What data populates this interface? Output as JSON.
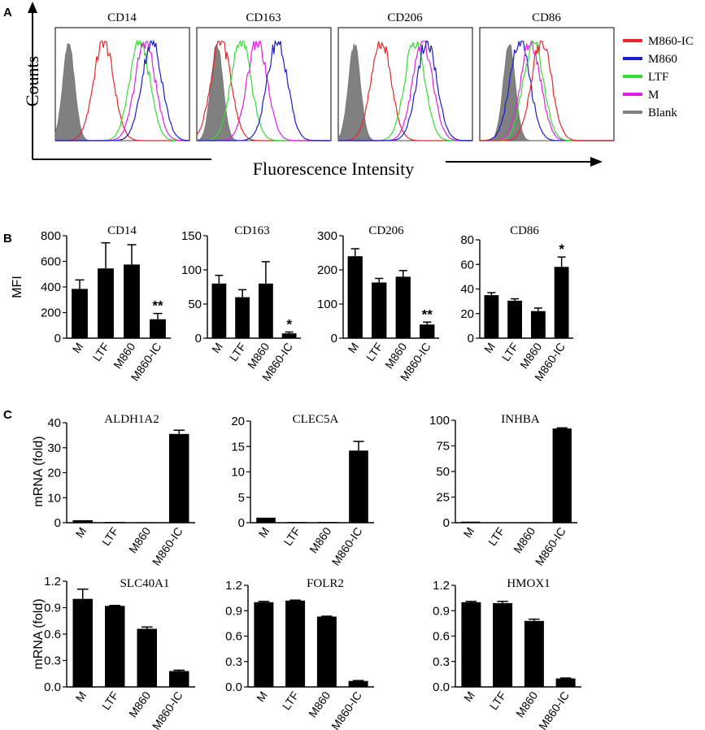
{
  "panels": {
    "A": "A",
    "B": "B",
    "C": "C"
  },
  "panel_a": {
    "y_axis_label": "Counts",
    "x_axis_label": "Fluorescence Intensity",
    "histograms": [
      "CD14",
      "CD163",
      "CD206",
      "CD86"
    ],
    "legend": [
      {
        "name": "M860-IC",
        "color": "#e8262b"
      },
      {
        "name": "M860",
        "color": "#1c1ccc"
      },
      {
        "name": "LTF",
        "color": "#33dd33"
      },
      {
        "name": "M",
        "color": "#e020e0"
      },
      {
        "name": "Blank",
        "color": "#808080"
      }
    ]
  },
  "chart_data": [
    {
      "type": "bar",
      "panel": "A",
      "subtype": "flow-cytometry-histogram",
      "title": "CD14",
      "series": [
        {
          "name": "Blank",
          "peak": 0.1
        },
        {
          "name": "M860-IC",
          "peak": 0.36
        },
        {
          "name": "LTF",
          "peak": 0.63
        },
        {
          "name": "M",
          "peak": 0.67
        },
        {
          "name": "M860",
          "peak": 0.72
        }
      ]
    },
    {
      "type": "bar",
      "panel": "A",
      "subtype": "flow-cytometry-histogram",
      "title": "CD163",
      "series": [
        {
          "name": "Blank",
          "peak": 0.15
        },
        {
          "name": "M860-IC",
          "peak": 0.18
        },
        {
          "name": "LTF",
          "peak": 0.33
        },
        {
          "name": "M",
          "peak": 0.45
        },
        {
          "name": "M860",
          "peak": 0.6
        }
      ]
    },
    {
      "type": "bar",
      "panel": "A",
      "subtype": "flow-cytometry-histogram",
      "title": "CD206",
      "series": [
        {
          "name": "Blank",
          "peak": 0.12
        },
        {
          "name": "M860-IC",
          "peak": 0.32
        },
        {
          "name": "LTF",
          "peak": 0.57
        },
        {
          "name": "M",
          "peak": 0.63
        },
        {
          "name": "M860",
          "peak": 0.66
        }
      ]
    },
    {
      "type": "bar",
      "panel": "A",
      "subtype": "flow-cytometry-histogram",
      "title": "CD86",
      "series": [
        {
          "name": "Blank",
          "peak": 0.22
        },
        {
          "name": "M860",
          "peak": 0.3
        },
        {
          "name": "M",
          "peak": 0.38
        },
        {
          "name": "LTF",
          "peak": 0.4
        },
        {
          "name": "M860-IC",
          "peak": 0.46
        }
      ]
    },
    {
      "type": "bar",
      "panel": "B",
      "title": "CD14",
      "ylabel": "MFI",
      "categories": [
        "M",
        "LTF",
        "M860",
        "M860-IC"
      ],
      "values": [
        385,
        545,
        575,
        148
      ],
      "errors": [
        70,
        200,
        155,
        45
      ],
      "ylim": [
        0,
        800
      ],
      "ticks": [
        0,
        200,
        400,
        600,
        800
      ],
      "tick_labels": [
        "0",
        "200",
        "400",
        "600",
        "800"
      ],
      "annotations": [
        "",
        "",
        "",
        "**"
      ]
    },
    {
      "type": "bar",
      "panel": "B",
      "title": "CD163",
      "ylabel": "",
      "categories": [
        "M",
        "LTF",
        "M860",
        "M860-IC"
      ],
      "values": [
        80,
        60,
        80,
        7
      ],
      "errors": [
        12,
        11,
        32,
        2
      ],
      "ylim": [
        0,
        150
      ],
      "ticks": [
        0,
        50,
        100,
        150
      ],
      "tick_labels": [
        "0",
        "50",
        "100",
        "150"
      ],
      "annotations": [
        "",
        "",
        "",
        "*"
      ]
    },
    {
      "type": "bar",
      "panel": "B",
      "title": "CD206",
      "ylabel": "",
      "categories": [
        "M",
        "LTF",
        "M860",
        "M860-IC"
      ],
      "values": [
        240,
        163,
        180,
        40
      ],
      "errors": [
        22,
        12,
        18,
        7
      ],
      "ylim": [
        0,
        300
      ],
      "ticks": [
        0,
        100,
        200,
        300
      ],
      "tick_labels": [
        "0",
        "100",
        "200",
        "300"
      ],
      "annotations": [
        "",
        "",
        "",
        "**"
      ]
    },
    {
      "type": "bar",
      "panel": "B",
      "title": "CD86",
      "ylabel": "",
      "categories": [
        "M",
        "LTF",
        "M860",
        "M860-IC"
      ],
      "values": [
        35,
        30.5,
        22,
        58
      ],
      "errors": [
        2,
        1.5,
        2.5,
        8
      ],
      "ylim": [
        0,
        80
      ],
      "ticks": [
        0,
        20,
        40,
        60,
        80
      ],
      "tick_labels": [
        "0",
        "20",
        "40",
        "60",
        "80"
      ],
      "annotations": [
        "",
        "",
        "",
        "*"
      ]
    },
    {
      "type": "bar",
      "panel": "C",
      "title": "ALDH1A2",
      "ylabel": "mRNA (fold)",
      "categories": [
        "M",
        "LTF",
        "M860",
        "M860-IC"
      ],
      "values": [
        1,
        0.3,
        0.2,
        35.5
      ],
      "errors": [
        0,
        0,
        0,
        1.5
      ],
      "ylim": [
        0,
        40
      ],
      "ticks": [
        0,
        10,
        20,
        30,
        40
      ],
      "tick_labels": [
        "0",
        "10",
        "20",
        "30",
        "40"
      ],
      "annotations": [
        "",
        "",
        "",
        ""
      ]
    },
    {
      "type": "bar",
      "panel": "C",
      "title": "CLEC5A",
      "ylabel": "",
      "categories": [
        "M",
        "LTF",
        "M860",
        "M860-IC"
      ],
      "values": [
        1,
        0.15,
        0.15,
        14.2
      ],
      "errors": [
        0,
        0,
        0,
        1.8
      ],
      "ylim": [
        0,
        20
      ],
      "ticks": [
        0,
        5,
        10,
        15,
        20
      ],
      "tick_labels": [
        "0",
        "5",
        "10",
        "15",
        "20"
      ],
      "annotations": [
        "",
        "",
        "",
        ""
      ]
    },
    {
      "type": "bar",
      "panel": "C",
      "title": "INHBA",
      "ylabel": "",
      "categories": [
        "M",
        "LTF",
        "M860",
        "M860-IC"
      ],
      "values": [
        1,
        0.2,
        0.5,
        92
      ],
      "errors": [
        0,
        0,
        0,
        0.6
      ],
      "ylim": [
        0,
        100
      ],
      "ticks": [
        0,
        25,
        50,
        75,
        100
      ],
      "tick_labels": [
        "0",
        "25",
        "50",
        "75",
        "100"
      ],
      "annotations": [
        "",
        "",
        "",
        ""
      ]
    },
    {
      "type": "bar",
      "panel": "C",
      "title": "SLC40A1",
      "ylabel": "mRNA (fold)",
      "categories": [
        "M",
        "LTF",
        "M860",
        "M860-IC"
      ],
      "values": [
        1.0,
        0.92,
        0.66,
        0.18
      ],
      "errors": [
        0.11,
        0.005,
        0.02,
        0.01
      ],
      "ylim": [
        0,
        1.2
      ],
      "ticks": [
        0,
        0.3,
        0.6,
        0.9,
        1.2
      ],
      "tick_labels": [
        "0.0",
        "0.3",
        "0.6",
        "0.9",
        "1.2"
      ],
      "annotations": [
        "",
        "",
        "",
        ""
      ]
    },
    {
      "type": "bar",
      "panel": "C",
      "title": "FOLR2",
      "ylabel": "",
      "categories": [
        "M",
        "LTF",
        "M860",
        "M860-IC"
      ],
      "values": [
        1.0,
        1.02,
        0.83,
        0.07
      ],
      "errors": [
        0.01,
        0.005,
        0.005,
        0.005
      ],
      "ylim": [
        0,
        1.2
      ],
      "ticks": [
        0,
        0.3,
        0.6,
        0.9,
        1.2
      ],
      "tick_labels": [
        "0.0",
        "0.3",
        "0.6",
        "0.9",
        "1.2"
      ],
      "annotations": [
        "",
        "",
        "",
        ""
      ]
    },
    {
      "type": "bar",
      "panel": "C",
      "title": "HMOX1",
      "ylabel": "",
      "categories": [
        "M",
        "LTF",
        "M860",
        "M860-IC"
      ],
      "values": [
        1.0,
        0.99,
        0.78,
        0.1
      ],
      "errors": [
        0.01,
        0.02,
        0.02,
        0.005
      ],
      "ylim": [
        0,
        1.2
      ],
      "ticks": [
        0,
        0.3,
        0.6,
        0.9,
        1.2
      ],
      "tick_labels": [
        "0.0",
        "0.3",
        "0.6",
        "0.9",
        "1.2"
      ],
      "annotations": [
        "",
        "",
        "",
        ""
      ]
    }
  ]
}
